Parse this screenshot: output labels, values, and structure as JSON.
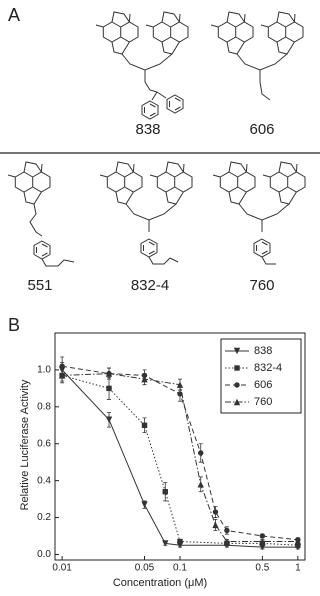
{
  "panels": {
    "a": {
      "label": "A",
      "compounds": [
        "838",
        "606",
        "551",
        "832-4",
        "760"
      ]
    },
    "b": {
      "label": "B"
    }
  },
  "chart_data": {
    "type": "line",
    "x_label": "Concentration (μM)",
    "y_label": "Relative Luciferase Activity",
    "xscale": "log",
    "xlim": [
      0.0087,
      1.15
    ],
    "xticks": [
      0.01,
      0.05,
      0.1,
      0.5,
      1
    ],
    "ylim": [
      -0.03,
      1.2
    ],
    "yticks": [
      {
        "value": 0,
        "label": "0.0"
      },
      0.2,
      0.4,
      0.6,
      0.8,
      {
        "value": 1,
        "label": "1.0"
      }
    ],
    "legend": "top-right",
    "series": [
      {
        "name": "838",
        "color": "#333333",
        "dash": "solid",
        "marker": "triangle-down",
        "x": [
          0.01,
          0.025,
          0.05,
          0.075,
          0.1,
          0.25,
          0.5,
          1
        ],
        "values": [
          1.0,
          0.73,
          0.27,
          0.06,
          0.05,
          0.05,
          0.04,
          0.04
        ],
        "errors": [
          0.04,
          0.04,
          0.02,
          0.01,
          0.01,
          0.01,
          0.01,
          0.01
        ]
      },
      {
        "name": "832-4",
        "color": "#333333",
        "dash": "dotted",
        "marker": "square",
        "x": [
          0.01,
          0.025,
          0.05,
          0.075,
          0.1,
          0.25,
          0.5,
          1
        ],
        "values": [
          0.97,
          0.9,
          0.7,
          0.34,
          0.07,
          0.06,
          0.06,
          0.05
        ],
        "errors": [
          0.04,
          0.06,
          0.04,
          0.05,
          0.01,
          0.01,
          0.01,
          0.01
        ]
      },
      {
        "name": "606",
        "color": "#333333",
        "dash": "dashed",
        "marker": "circle",
        "x": [
          0.01,
          0.025,
          0.05,
          0.1,
          0.15,
          0.2,
          0.25,
          0.5,
          1
        ],
        "values": [
          1.02,
          0.98,
          0.97,
          0.87,
          0.55,
          0.23,
          0.13,
          0.1,
          0.08
        ],
        "errors": [
          0.05,
          0.03,
          0.03,
          0.04,
          0.05,
          0.03,
          0.02,
          0.01,
          0.01
        ]
      },
      {
        "name": "760",
        "color": "#333333",
        "dash": "dashdot",
        "marker": "triangle-up",
        "x": [
          0.01,
          0.025,
          0.05,
          0.1,
          0.15,
          0.2,
          0.25,
          0.5,
          1
        ],
        "values": [
          0.97,
          0.98,
          0.95,
          0.92,
          0.38,
          0.16,
          0.07,
          0.07,
          0.07
        ],
        "errors": [
          0.03,
          0.03,
          0.03,
          0.03,
          0.04,
          0.03,
          0.01,
          0.01,
          0.01
        ]
      }
    ]
  }
}
